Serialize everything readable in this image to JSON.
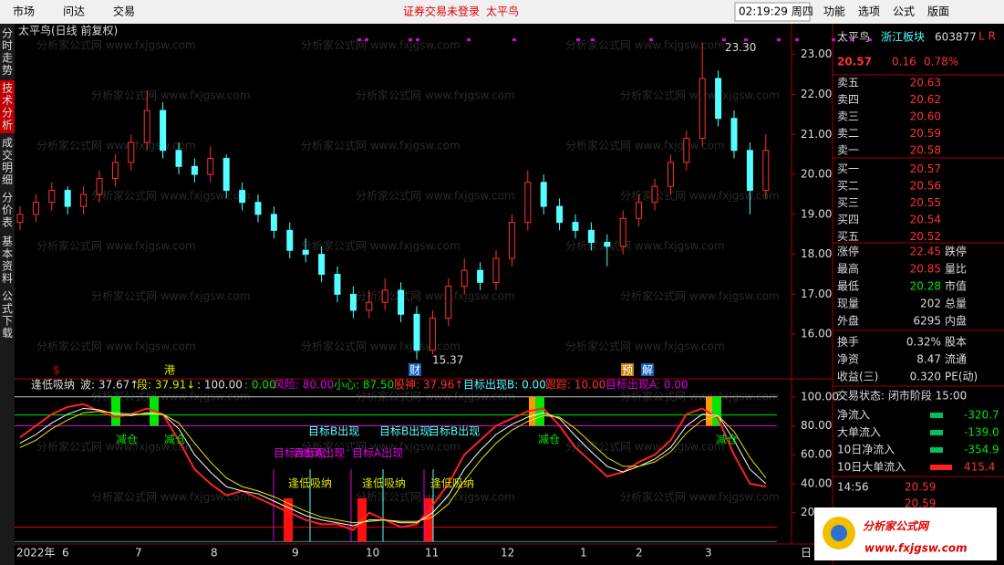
{
  "menu": {
    "left": [
      "市场",
      "问达",
      "交易"
    ],
    "notice": "证券交易未登录",
    "stock": "太平鸟",
    "clock": "02:19:29 周四",
    "right": [
      "功能",
      "选项",
      "公式",
      "版面"
    ]
  },
  "side_tabs": [
    "分时走势",
    "技术分析",
    "成交明细",
    "分价表",
    "基本资料",
    "公式下载"
  ],
  "watermark": "分析家公式网 www.fxjgsw.com",
  "x_labels": [
    "2022年",
    "6",
    "7",
    "8",
    "9",
    "10",
    "11",
    "12",
    "1",
    "2",
    "3",
    "日"
  ],
  "chart_data": [
    {
      "type": "candlestick",
      "title": "太平鸟(日线 前复权)",
      "ylim": [
        15,
        23.45
      ],
      "yticks": [
        {
          "value": 16,
          "label": "16.00"
        },
        {
          "value": 17,
          "label": "17.00"
        },
        {
          "value": 18,
          "label": "18.00"
        },
        {
          "value": 19,
          "label": "19.00"
        },
        {
          "value": 20,
          "label": "20.00"
        },
        {
          "value": 21,
          "label": "21.00"
        },
        {
          "value": 22,
          "label": "22.00"
        },
        {
          "value": 23,
          "label": "23.00"
        }
      ],
      "candles": [
        [
          18.8,
          19.2,
          18.6,
          19.0
        ],
        [
          19.0,
          19.5,
          18.8,
          19.3
        ],
        [
          19.3,
          19.8,
          19.1,
          19.6
        ],
        [
          19.6,
          19.7,
          19.0,
          19.2
        ],
        [
          19.2,
          19.7,
          19.0,
          19.5
        ],
        [
          19.5,
          20.1,
          19.3,
          19.9
        ],
        [
          19.9,
          20.5,
          19.7,
          20.3
        ],
        [
          20.3,
          21.0,
          20.1,
          20.8
        ],
        [
          20.8,
          22.1,
          20.6,
          21.6
        ],
        [
          21.6,
          21.8,
          20.4,
          20.6
        ],
        [
          20.6,
          20.8,
          20.0,
          20.2
        ],
        [
          20.2,
          20.4,
          19.8,
          20.0
        ],
        [
          20.0,
          20.7,
          19.8,
          20.4
        ],
        [
          20.4,
          20.5,
          19.4,
          19.6
        ],
        [
          19.6,
          19.8,
          19.1,
          19.3
        ],
        [
          19.3,
          19.5,
          18.8,
          19.0
        ],
        [
          19.0,
          19.2,
          18.4,
          18.6
        ],
        [
          18.6,
          18.8,
          17.9,
          18.1
        ],
        [
          18.1,
          18.4,
          17.8,
          18.0
        ],
        [
          18.0,
          18.2,
          17.3,
          17.5
        ],
        [
          17.5,
          17.7,
          16.8,
          17.0
        ],
        [
          17.0,
          17.2,
          16.4,
          16.6
        ],
        [
          16.6,
          17.1,
          16.4,
          16.8
        ],
        [
          16.8,
          17.4,
          16.6,
          17.1
        ],
        [
          17.1,
          17.3,
          16.3,
          16.5
        ],
        [
          16.5,
          16.7,
          15.37,
          15.6
        ],
        [
          15.6,
          16.6,
          15.5,
          16.4
        ],
        [
          16.4,
          17.4,
          16.2,
          17.2
        ],
        [
          17.2,
          17.9,
          17.0,
          17.6
        ],
        [
          17.6,
          17.8,
          17.1,
          17.3
        ],
        [
          17.3,
          18.1,
          17.1,
          17.9
        ],
        [
          17.9,
          19.0,
          17.7,
          18.8
        ],
        [
          18.8,
          20.1,
          18.6,
          19.8
        ],
        [
          19.8,
          20.0,
          19.0,
          19.2
        ],
        [
          19.2,
          19.4,
          18.6,
          18.8
        ],
        [
          18.8,
          19.0,
          18.4,
          18.6
        ],
        [
          18.6,
          18.8,
          18.1,
          18.3
        ],
        [
          18.3,
          18.5,
          17.7,
          18.2
        ],
        [
          18.2,
          19.1,
          18.0,
          18.9
        ],
        [
          18.9,
          19.5,
          18.7,
          19.3
        ],
        [
          19.3,
          19.9,
          19.1,
          19.7
        ],
        [
          19.7,
          20.5,
          19.5,
          20.3
        ],
        [
          20.3,
          21.1,
          20.1,
          20.9
        ],
        [
          20.9,
          23.3,
          20.7,
          22.4
        ],
        [
          22.4,
          22.6,
          21.2,
          21.4
        ],
        [
          21.4,
          21.6,
          20.4,
          20.6
        ],
        [
          20.6,
          20.8,
          19.0,
          19.6
        ],
        [
          19.6,
          21.0,
          19.4,
          20.6
        ]
      ],
      "annotations": {
        "high": "23.30",
        "low": "15.37"
      },
      "markers": [
        "$",
        "港",
        "财",
        "预",
        "解"
      ]
    },
    {
      "type": "line",
      "title": "逢低吸纳",
      "params": [
        "波: 37.67↑",
        "段: 37.91↓",
        ": 100.00",
        ": 0.00",
        "风险: 80.00",
        "小心: 87.50",
        "股神: 37.96↑",
        "目标出现B: 0.00",
        "跟踪: 10.00",
        "目标出现A: 0.00"
      ],
      "ylim": [
        -1,
        103
      ],
      "yticks": [
        {
          "value": 20,
          "label": "20.00"
        },
        {
          "value": 40,
          "label": "40.00"
        },
        {
          "value": 60,
          "label": "60.00"
        },
        {
          "value": 80,
          "label": "80.00"
        },
        {
          "value": 100,
          "label": "100.00"
        }
      ],
      "reference_lines": [
        {
          "value": 100,
          "color": "#c8c8c8"
        },
        {
          "value": 87.5,
          "color": "#00e600"
        },
        {
          "value": 80,
          "color": "#e000e0"
        },
        {
          "value": 10,
          "color": "#e00000"
        },
        {
          "value": 0,
          "color": "#00a0a0"
        }
      ],
      "series": [
        {
          "color": "#ff2020",
          "values": [
            72,
            80,
            88,
            93,
            95,
            90,
            86,
            88,
            92,
            88,
            70,
            50,
            40,
            32,
            35,
            30,
            25,
            20,
            15,
            12,
            12,
            8,
            20,
            15,
            10,
            12,
            25,
            40,
            60,
            70,
            80,
            85,
            90,
            92,
            80,
            65,
            55,
            45,
            48,
            55,
            60,
            70,
            88,
            92,
            85,
            60,
            40,
            38
          ]
        },
        {
          "color": "#ffffff",
          "values": [
            68,
            74,
            82,
            88,
            92,
            91,
            88,
            87,
            89,
            88,
            78,
            60,
            48,
            38,
            35,
            33,
            28,
            23,
            18,
            15,
            13,
            11,
            15,
            15,
            13,
            13,
            20,
            32,
            50,
            63,
            74,
            81,
            86,
            89,
            85,
            73,
            62,
            52,
            48,
            52,
            57,
            65,
            80,
            88,
            87,
            70,
            50,
            40
          ]
        },
        {
          "color": "#e8e800",
          "values": [
            65,
            70,
            78,
            84,
            89,
            90,
            89,
            88,
            88,
            88,
            82,
            68,
            55,
            44,
            38,
            35,
            31,
            26,
            21,
            17,
            15,
            13,
            14,
            15,
            14,
            14,
            17,
            26,
            42,
            56,
            68,
            77,
            83,
            87,
            86,
            78,
            68,
            58,
            52,
            52,
            55,
            62,
            75,
            84,
            87,
            76,
            58,
            44
          ]
        }
      ],
      "signals": [
        "减仓",
        "减仓",
        "目标A出现",
        "目标A出现",
        "目标B出现",
        "逢低吸纳",
        "目标A出现",
        "目标B出现",
        "逢低吸纳",
        "目标B出现",
        "逢低吸纳",
        "减仓",
        "减仓"
      ]
    }
  ],
  "quote": {
    "name": "太平鸟",
    "board": "浙江板块",
    "code": "603877",
    "flag": "L R",
    "price": "20.57",
    "change": "0.16",
    "pct": "0.78%",
    "book": [
      [
        "卖五",
        "20.63"
      ],
      [
        "卖四",
        "20.62"
      ],
      [
        "卖三",
        "20.60"
      ],
      [
        "卖二",
        "20.59"
      ],
      [
        "卖一",
        "20.58"
      ],
      [
        "买一",
        "20.57"
      ],
      [
        "买二",
        "20.56"
      ],
      [
        "买三",
        "20.55"
      ],
      [
        "买四",
        "20.54"
      ],
      [
        "买五",
        "20.52"
      ]
    ],
    "stats": [
      [
        "涨停",
        "22.45",
        "跌停"
      ],
      [
        "最高",
        "20.85",
        "量比"
      ],
      [
        "最低",
        "20.28",
        "市值"
      ],
      [
        "现量",
        "202",
        "总量"
      ],
      [
        "外盘",
        "6295",
        "内盘"
      ],
      [
        "换手",
        "0.32%",
        "股本"
      ],
      [
        "净资",
        "8.47",
        "流通"
      ],
      [
        "收益(三)",
        "0.320",
        "PE(动)"
      ]
    ],
    "status": "交易状态: 闭市阶段 15:00",
    "flows": [
      [
        "净流入",
        "-320.7"
      ],
      [
        "大单流入",
        "-139.0"
      ],
      [
        "10日净流入",
        "-354.9"
      ],
      [
        "10日大单流入",
        "415.4"
      ]
    ],
    "ticks": [
      [
        "14:56",
        "20.59"
      ],
      [
        "",
        "20.59"
      ]
    ]
  },
  "logo": {
    "name": "分析家公式网",
    "url": "www.fxjgsw.com"
  }
}
